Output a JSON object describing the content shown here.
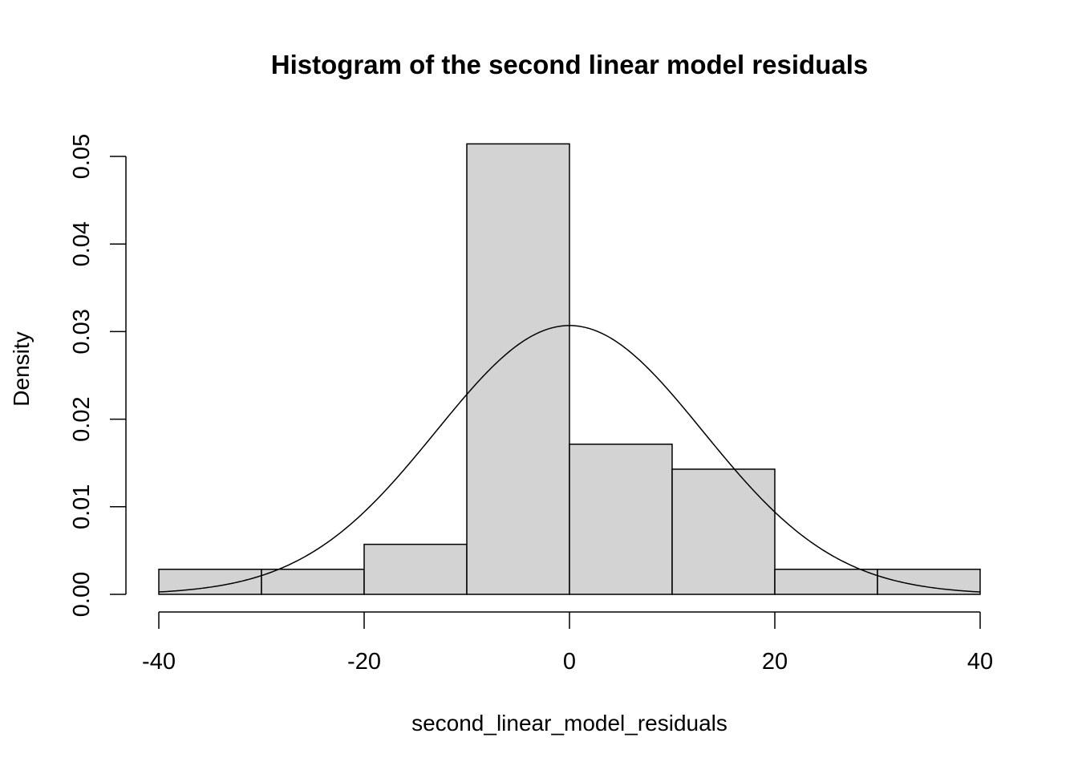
{
  "chart_data": {
    "type": "bar",
    "subtype": "histogram",
    "title": "Histogram of the second linear model residuals",
    "xlabel": "second_linear_model_residuals",
    "ylabel": "Density",
    "xlim": [
      -40,
      40
    ],
    "ylim": [
      0,
      0.05
    ],
    "x_ticks": [
      -40,
      -20,
      0,
      20,
      40
    ],
    "x_tick_labels": [
      "-40",
      "-20",
      "0",
      "20",
      "40"
    ],
    "y_ticks": [
      0,
      0.01,
      0.02,
      0.03,
      0.04,
      0.05
    ],
    "y_tick_labels": [
      "0.00",
      "0.01",
      "0.02",
      "0.03",
      "0.04",
      "0.05"
    ],
    "bins": [
      {
        "start": -40,
        "end": -30,
        "density": 0.00286
      },
      {
        "start": -30,
        "end": -20,
        "density": 0.00286
      },
      {
        "start": -20,
        "end": -10,
        "density": 0.00571
      },
      {
        "start": -10,
        "end": 0,
        "density": 0.05143
      },
      {
        "start": 0,
        "end": 10,
        "density": 0.01714
      },
      {
        "start": 10,
        "end": 20,
        "density": 0.01429
      },
      {
        "start": 20,
        "end": 30,
        "density": 0.00286
      },
      {
        "start": 30,
        "end": 40,
        "density": 0.00286
      }
    ],
    "overlay": {
      "type": "line",
      "description": "normal density curve",
      "mean": 0,
      "sd": 13
    },
    "grid": false,
    "legend": "none",
    "colors": {
      "bar_fill": "#d3d3d3",
      "bar_stroke": "#000000",
      "curve": "#000000"
    }
  }
}
